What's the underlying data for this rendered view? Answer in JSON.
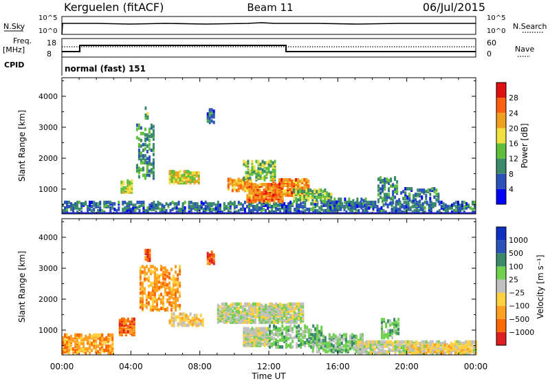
{
  "header": {
    "station": "Kerguelen (fitACF)",
    "beam": "Beam 11",
    "date": "06/Jul/2015"
  },
  "aux_panels": {
    "nsky_label": "N.Sky",
    "nsearch_label": "N.Search",
    "left_ticks": [
      "10^5",
      "10^0"
    ],
    "right_ticks": [
      "10^5",
      "10^0"
    ],
    "freq_label_1": "Freq.",
    "freq_label_2": "[MHz]",
    "freq_ticks": [
      "18",
      "8"
    ],
    "nave_label": "Nave",
    "nave_ticks": [
      "60",
      "0"
    ],
    "cpid_label": "CPID",
    "cpid_text": "normal (fast) 151"
  },
  "colors": {
    "power": [
      "#0000ff",
      "#2a52b8",
      "#3a8a6a",
      "#5fbf3c",
      "#f0e040",
      "#f0a020",
      "#ff6010",
      "#e01010"
    ],
    "velocity": [
      "#e02020",
      "#ff6a00",
      "#ffa020",
      "#ffd040",
      "#c0c0c0",
      "#70d050",
      "#3a8a6a",
      "#2a52b8",
      "#1030c0"
    ],
    "ground": "#c0c0c0"
  },
  "chart_data": [
    {
      "type": "heatmap",
      "name": "power",
      "ylabel": "Slant Range [km]",
      "xlabel": "Time UT",
      "xlim": [
        0,
        24
      ],
      "ylim": [
        200,
        4600
      ],
      "x_ticks": [
        "00:00",
        "04:00",
        "08:00",
        "12:00",
        "16:00",
        "20:00",
        "00:00"
      ],
      "y_ticks": [
        "1000",
        "2000",
        "3000",
        "4000"
      ],
      "y_tick_values": [
        1000,
        2000,
        3000,
        4000
      ],
      "colorbar_label": "Power [dB]",
      "colorbar_ticks": [
        "28",
        "24",
        "20",
        "16",
        "12",
        "8",
        "4"
      ],
      "colorbar_range": [
        0,
        32
      ],
      "patches": [
        {
          "t0": 0.0,
          "t1": 24.0,
          "r0": 200,
          "r1": 550,
          "v": 8,
          "d": 0.45
        },
        {
          "t0": 3.4,
          "t1": 4.1,
          "r0": 850,
          "r1": 1250,
          "v": 16,
          "d": 0.7
        },
        {
          "t0": 4.3,
          "t1": 5.3,
          "r0": 1300,
          "r1": 3100,
          "v": 10,
          "d": 0.3
        },
        {
          "t0": 4.8,
          "t1": 5.0,
          "r0": 3200,
          "r1": 3600,
          "v": 12,
          "d": 0.5
        },
        {
          "t0": 6.2,
          "t1": 8.0,
          "r0": 1150,
          "r1": 1550,
          "v": 18,
          "d": 0.65
        },
        {
          "t0": 8.4,
          "t1": 8.8,
          "r0": 3100,
          "r1": 3550,
          "v": 8,
          "d": 0.45
        },
        {
          "t0": 9.6,
          "t1": 11.0,
          "r0": 900,
          "r1": 1300,
          "v": 22,
          "d": 0.65
        },
        {
          "t0": 10.5,
          "t1": 12.3,
          "r0": 1250,
          "r1": 1850,
          "v": 14,
          "d": 0.5
        },
        {
          "t0": 10.7,
          "t1": 12.8,
          "r0": 550,
          "r1": 1100,
          "v": 24,
          "d": 0.8
        },
        {
          "t0": 12.2,
          "t1": 14.3,
          "r0": 750,
          "r1": 1250,
          "v": 24,
          "d": 0.7
        },
        {
          "t0": 13.4,
          "t1": 15.6,
          "r0": 550,
          "r1": 950,
          "v": 14,
          "d": 0.55
        },
        {
          "t0": 15.4,
          "t1": 17.6,
          "r0": 300,
          "r1": 650,
          "v": 8,
          "d": 0.45
        },
        {
          "t0": 18.3,
          "t1": 19.5,
          "r0": 500,
          "r1": 1350,
          "v": 10,
          "d": 0.35
        },
        {
          "t0": 19.5,
          "t1": 21.8,
          "r0": 550,
          "r1": 1000,
          "v": 8,
          "d": 0.3
        }
      ]
    },
    {
      "type": "heatmap",
      "name": "velocity",
      "ylabel": "Slant Range [km]",
      "xlabel": "Time UT",
      "xlim": [
        0,
        24
      ],
      "ylim": [
        200,
        4600
      ],
      "x_ticks": [
        "00:00",
        "04:00",
        "08:00",
        "12:00",
        "16:00",
        "20:00",
        "00:00"
      ],
      "y_ticks": [
        "1000",
        "2000",
        "3000",
        "4000"
      ],
      "y_tick_values": [
        1000,
        2000,
        3000,
        4000
      ],
      "colorbar_label": "Velocity [m s⁻¹]",
      "colorbar_ticks": [
        "1000",
        "500",
        "100",
        "25",
        "−25",
        "−100",
        "−500",
        "−1000"
      ],
      "patches": [
        {
          "t0": 0.0,
          "t1": 3.0,
          "r0": 200,
          "r1": 800,
          "v": 2,
          "d": 0.55
        },
        {
          "t0": 3.3,
          "t1": 4.2,
          "r0": 800,
          "r1": 1300,
          "v": 1,
          "d": 0.7
        },
        {
          "t0": 4.5,
          "t1": 6.8,
          "r0": 1600,
          "r1": 3000,
          "v": 2,
          "d": 0.35
        },
        {
          "t0": 4.8,
          "t1": 5.1,
          "r0": 3200,
          "r1": 3550,
          "v": 1,
          "d": 0.6
        },
        {
          "t0": 8.4,
          "t1": 8.8,
          "r0": 3100,
          "r1": 3500,
          "v": 1,
          "d": 0.6
        },
        {
          "t0": 6.2,
          "t1": 8.2,
          "r0": 1100,
          "r1": 1500,
          "v": 3,
          "d": 0.5
        },
        {
          "t0": 9.0,
          "t1": 14.0,
          "r0": 1200,
          "r1": 1800,
          "v": 4,
          "d": 0.75
        },
        {
          "t0": 10.5,
          "t1": 12.0,
          "r0": 450,
          "r1": 1000,
          "v": 4,
          "d": 0.85
        },
        {
          "t0": 12.0,
          "t1": 15.0,
          "r0": 400,
          "r1": 1100,
          "v": 5,
          "d": 0.45
        },
        {
          "t0": 14.5,
          "t1": 17.5,
          "r0": 250,
          "r1": 800,
          "v": 5,
          "d": 0.5
        },
        {
          "t0": 17.0,
          "t1": 24.0,
          "r0": 200,
          "r1": 600,
          "v": 4,
          "d": 0.6
        },
        {
          "t0": 18.5,
          "t1": 19.5,
          "r0": 700,
          "r1": 1300,
          "v": 5,
          "d": 0.35
        },
        {
          "t0": 20.0,
          "t1": 24.0,
          "r0": 200,
          "r1": 500,
          "v": 3,
          "d": 0.5
        }
      ]
    }
  ]
}
